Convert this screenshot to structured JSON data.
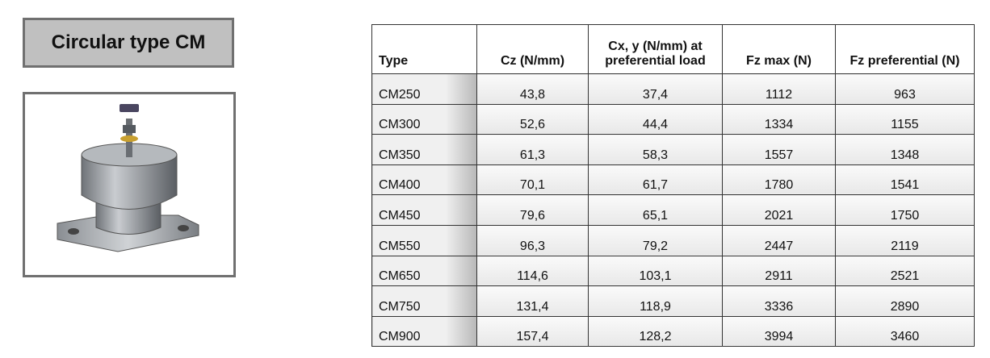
{
  "header": {
    "title": "Circular type CM"
  },
  "table": {
    "columns": [
      "Type",
      "Cz (N/mm)",
      "Cx, y (N/mm) at preferential load",
      "Fz max (N)",
      "Fz preferential (N)"
    ],
    "rows": [
      [
        "CM250",
        "43,8",
        "37,4",
        "1112",
        "963"
      ],
      [
        "CM300",
        "52,6",
        "44,4",
        "1334",
        "1155"
      ],
      [
        "CM350",
        "61,3",
        "58,3",
        "1557",
        "1348"
      ],
      [
        "CM400",
        "70,1",
        "61,7",
        "1780",
        "1541"
      ],
      [
        "CM450",
        "79,6",
        "65,1",
        "2021",
        "1750"
      ],
      [
        "CM550",
        "96,3",
        "79,2",
        "2447",
        "2119"
      ],
      [
        "CM650",
        "114,6",
        "103,1",
        "2911",
        "2521"
      ],
      [
        "CM750",
        "131,4",
        "118,9",
        "3336",
        "2890"
      ],
      [
        "CM900",
        "157,4",
        "128,2",
        "3994",
        "3460"
      ]
    ]
  }
}
